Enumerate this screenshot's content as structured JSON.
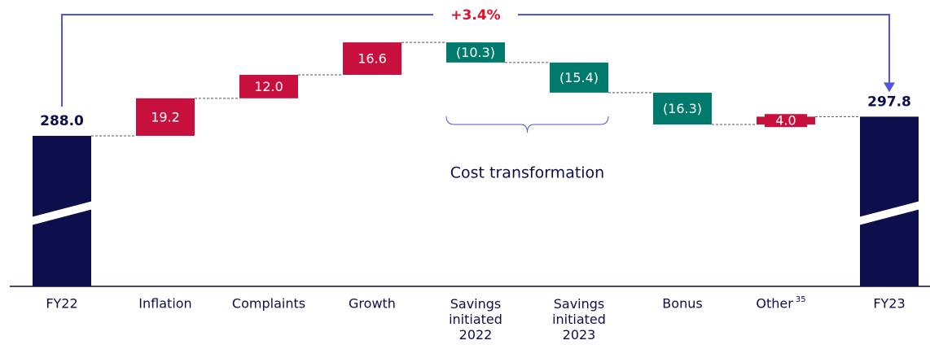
{
  "chart_data": {
    "type": "waterfall",
    "categories": [
      "FY22",
      "Inflation",
      "Complaints",
      "Growth",
      "Savings initiated 2022",
      "Savings initiated 2023",
      "Bonus",
      "Other",
      "FY23"
    ],
    "category_footnotes": [
      null,
      null,
      null,
      null,
      null,
      null,
      null,
      "35",
      null
    ],
    "values": [
      288.0,
      19.2,
      12.0,
      16.6,
      -10.3,
      -15.4,
      -16.3,
      4.0,
      297.8
    ],
    "value_labels": [
      "288.0",
      "19.2",
      "12.0",
      "16.6",
      "(10.3)",
      "(15.4)",
      "(16.3)",
      "4.0",
      "297.8"
    ],
    "kinds": [
      "total",
      "delta",
      "delta",
      "delta",
      "delta",
      "delta",
      "delta",
      "delta",
      "total"
    ],
    "colors": {
      "total": "#0d0f4d",
      "increase": "#c8103e",
      "decrease": "#007a6c"
    },
    "ylim": [
      211,
      340
    ],
    "axis_break": true,
    "change_label": "+3.4%",
    "bracket": {
      "label": "Cost transformation",
      "from": 4,
      "to": 5
    }
  }
}
